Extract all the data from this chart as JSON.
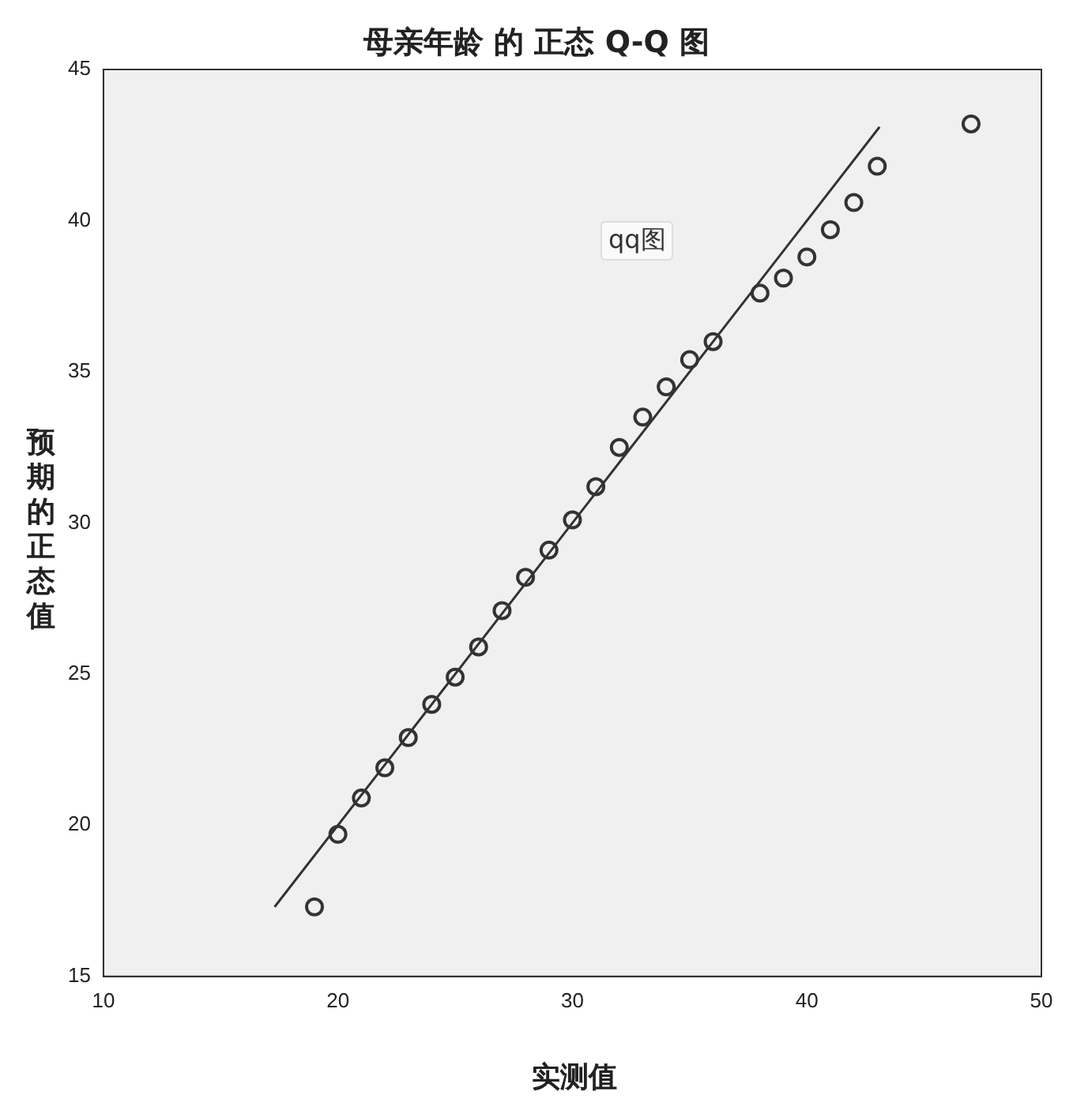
{
  "chart_data": {
    "type": "scatter",
    "title": "母亲年龄 的 正态 Q-Q 图",
    "xlabel": "实测值",
    "ylabel": "预期的正态值",
    "xlim": [
      10,
      50
    ],
    "xticks": [
      10,
      20,
      30,
      40,
      50
    ],
    "ylim": [
      15,
      45
    ],
    "yticks": [
      15,
      20,
      25,
      30,
      35,
      40,
      45
    ],
    "grid": false,
    "legend": false,
    "marker": "circle",
    "annotations": [
      "qq图"
    ],
    "series": [
      {
        "color": "#333333",
        "x": [
          19,
          20,
          21,
          22,
          23,
          24,
          25,
          26,
          27,
          28,
          29,
          30,
          31,
          32,
          33,
          34,
          35,
          36,
          38,
          39,
          40,
          41,
          42,
          43,
          47
        ],
        "values": [
          17.3,
          19.7,
          20.9,
          21.9,
          22.9,
          24.0,
          24.9,
          25.9,
          27.1,
          28.2,
          29.1,
          30.1,
          31.2,
          32.5,
          33.5,
          34.5,
          35.4,
          36.0,
          37.6,
          38.1,
          38.8,
          39.7,
          40.6,
          41.8,
          43.2
        ]
      },
      {
        "type": "line",
        "color": "#333333",
        "marker": "none",
        "x": [
          17.3,
          43.1
        ],
        "values": [
          17.3,
          43.1
        ]
      }
    ]
  }
}
